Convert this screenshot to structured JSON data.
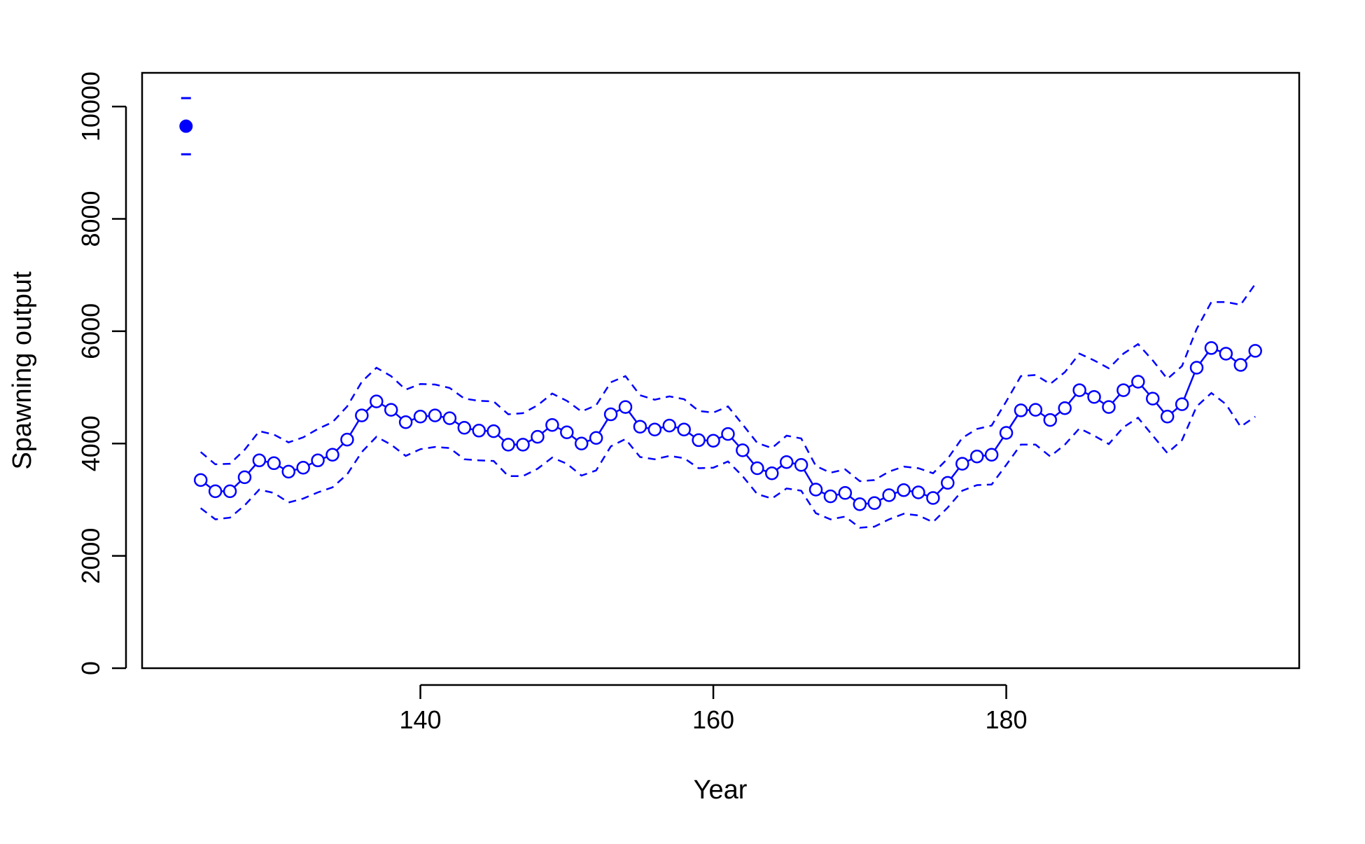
{
  "chart_data": {
    "type": "line",
    "xlabel": "Year",
    "ylabel": "Spawning output",
    "xlim": [
      121,
      200
    ],
    "ylim": [
      0,
      10600
    ],
    "x_ticks": [
      140,
      160,
      180
    ],
    "y_ticks": [
      0,
      2000,
      4000,
      6000,
      8000,
      10000
    ],
    "grid": false,
    "color": "#0000ff",
    "virgin": {
      "x": 124,
      "value": 9650,
      "lower": 9150,
      "upper": 10150
    },
    "series": [
      {
        "x": [
          125,
          126,
          127,
          128,
          129,
          130,
          131,
          132,
          133,
          134,
          135,
          136,
          137,
          138,
          139,
          140,
          141,
          142,
          143,
          144,
          145,
          146,
          147,
          148,
          149,
          150,
          151,
          152,
          153,
          154,
          155,
          156,
          157,
          158,
          159,
          160,
          161,
          162,
          163,
          164,
          165,
          166,
          167,
          168,
          169,
          170,
          171,
          172,
          173,
          174,
          175,
          176,
          177,
          178,
          179,
          180,
          181,
          182,
          183,
          184,
          185,
          186,
          187,
          188,
          189,
          190,
          191,
          192,
          193,
          194,
          195,
          196,
          197
        ],
        "values": [
          3350,
          3150,
          3150,
          3400,
          3700,
          3650,
          3500,
          3570,
          3700,
          3800,
          4070,
          4500,
          4750,
          4600,
          4380,
          4480,
          4500,
          4450,
          4280,
          4230,
          4220,
          3980,
          3980,
          4120,
          4330,
          4200,
          4000,
          4100,
          4520,
          4650,
          4300,
          4250,
          4320,
          4250,
          4060,
          4050,
          4170,
          3880,
          3560,
          3470,
          3670,
          3620,
          3180,
          3060,
          3120,
          2920,
          2940,
          3080,
          3170,
          3130,
          3030,
          3300,
          3640,
          3770,
          3800,
          4190,
          4590,
          4600,
          4420,
          4630,
          4950,
          4830,
          4650,
          4950,
          5100,
          4800,
          4480,
          4700,
          5350,
          5700,
          5600,
          5400,
          5650
        ],
        "lower": [
          2850,
          2650,
          2680,
          2900,
          3180,
          3120,
          2950,
          3020,
          3130,
          3220,
          3450,
          3850,
          4120,
          3980,
          3780,
          3900,
          3940,
          3920,
          3720,
          3700,
          3690,
          3420,
          3420,
          3550,
          3750,
          3640,
          3430,
          3520,
          3950,
          4080,
          3760,
          3720,
          3780,
          3740,
          3560,
          3570,
          3680,
          3420,
          3100,
          3020,
          3200,
          3160,
          2760,
          2650,
          2700,
          2500,
          2520,
          2650,
          2750,
          2720,
          2600,
          2860,
          3160,
          3260,
          3270,
          3620,
          3980,
          3980,
          3770,
          3980,
          4270,
          4140,
          3990,
          4290,
          4460,
          4140,
          3830,
          4060,
          4660,
          4900,
          4700,
          4300,
          4480
        ],
        "upper": [
          3850,
          3630,
          3640,
          3890,
          4220,
          4160,
          4020,
          4110,
          4260,
          4380,
          4660,
          5100,
          5350,
          5200,
          4960,
          5060,
          5050,
          4990,
          4800,
          4760,
          4750,
          4520,
          4540,
          4680,
          4890,
          4760,
          4570,
          4680,
          5090,
          5200,
          4860,
          4780,
          4840,
          4790,
          4580,
          4550,
          4660,
          4340,
          4010,
          3920,
          4140,
          4090,
          3600,
          3480,
          3540,
          3330,
          3350,
          3500,
          3590,
          3560,
          3470,
          3730,
          4100,
          4260,
          4320,
          4750,
          5200,
          5220,
          5060,
          5270,
          5600,
          5480,
          5340,
          5600,
          5770,
          5480,
          5150,
          5380,
          6040,
          6520,
          6520,
          6470,
          6840
        ]
      }
    ]
  }
}
